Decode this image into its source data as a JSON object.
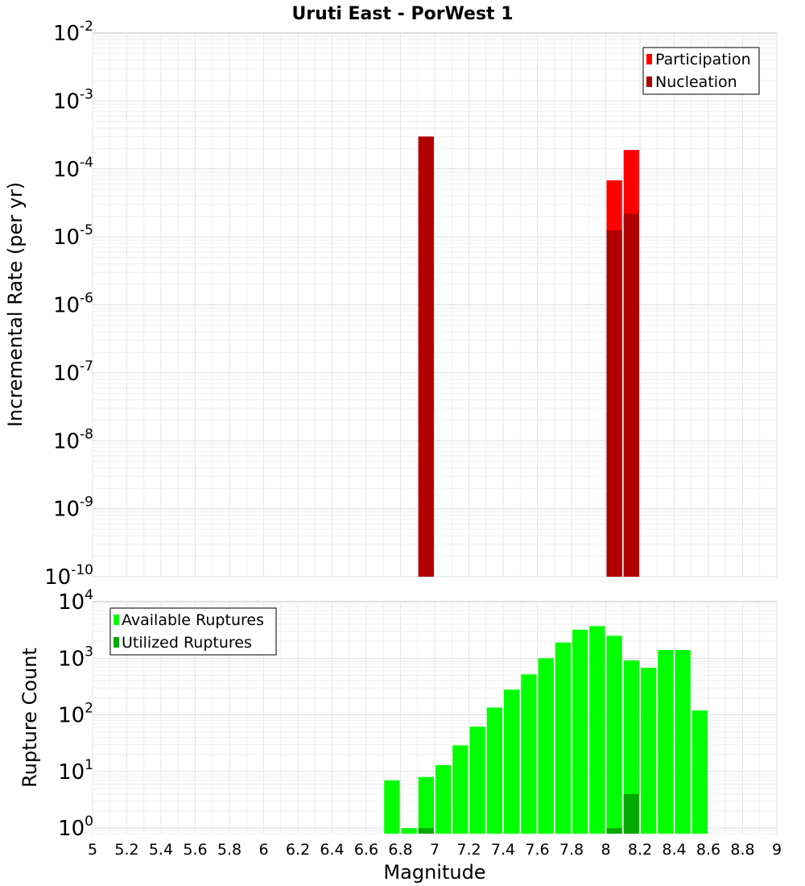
{
  "chart_data": [
    {
      "type": "bar",
      "title": "Uruti East - PorWest 1",
      "ylabel": "Incremental Rate (per yr)",
      "xlabel": "",
      "y_scale": "log",
      "ylim": [
        1e-10,
        0.01
      ],
      "xlim": [
        5,
        9
      ],
      "y_ticks": [
        {
          "base": "10",
          "exp": "-2"
        },
        {
          "base": "10",
          "exp": "-3"
        },
        {
          "base": "10",
          "exp": "-4"
        },
        {
          "base": "10",
          "exp": "-5"
        },
        {
          "base": "10",
          "exp": "-6"
        },
        {
          "base": "10",
          "exp": "-7"
        },
        {
          "base": "10",
          "exp": "-8"
        },
        {
          "base": "10",
          "exp": "-9"
        },
        {
          "base": "10",
          "exp": "-10"
        }
      ],
      "grid": true,
      "legend_position": "top-right",
      "bin_width": 0.1,
      "series": [
        {
          "name": "Participation",
          "color": "#ff0000",
          "x": [
            6.95,
            8.05,
            8.15
          ],
          "values": [
            0.0003,
            6.8e-05,
            0.00019
          ]
        },
        {
          "name": "Nucleation",
          "color": "#b00000",
          "x": [
            6.95,
            8.05,
            8.15
          ],
          "values": [
            0.0003,
            1.25e-05,
            2.2e-05
          ]
        }
      ]
    },
    {
      "type": "bar",
      "title": "",
      "ylabel": "Rupture Count",
      "xlabel": "Magnitude",
      "y_scale": "log",
      "ylim": [
        0.8,
        10000
      ],
      "xlim": [
        5,
        9
      ],
      "y_ticks": [
        {
          "base": "10",
          "exp": "4"
        },
        {
          "base": "10",
          "exp": "3"
        },
        {
          "base": "10",
          "exp": "2"
        },
        {
          "base": "10",
          "exp": "1"
        },
        {
          "base": "10",
          "exp": "0"
        }
      ],
      "x_ticks": [
        "5",
        "5.2",
        "5.4",
        "5.6",
        "5.8",
        "6",
        "6.2",
        "6.4",
        "6.6",
        "6.8",
        "7",
        "7.2",
        "7.4",
        "7.6",
        "7.8",
        "8",
        "8.2",
        "8.4",
        "8.6",
        "8.8",
        "9"
      ],
      "grid": true,
      "legend_position": "top-left",
      "bin_width": 0.1,
      "series": [
        {
          "name": "Available Ruptures",
          "color": "#00ff00",
          "x": [
            6.75,
            6.85,
            6.95,
            7.05,
            7.15,
            7.25,
            7.35,
            7.45,
            7.55,
            7.65,
            7.75,
            7.85,
            7.95,
            8.05,
            8.15,
            8.25,
            8.35,
            8.45,
            8.55
          ],
          "values": [
            7,
            1,
            8,
            13,
            29,
            62,
            135,
            280,
            520,
            1000,
            1900,
            3200,
            3700,
            2500,
            920,
            680,
            1400,
            1400,
            120
          ]
        },
        {
          "name": "Utilized Ruptures",
          "color": "#00aa00",
          "x": [
            6.95,
            8.05,
            8.15
          ],
          "values": [
            1,
            1,
            4
          ]
        }
      ]
    }
  ]
}
